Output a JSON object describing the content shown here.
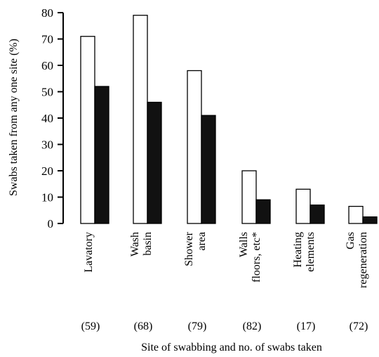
{
  "chart_data": {
    "type": "bar",
    "categories": [
      [
        "Lavatory"
      ],
      [
        "Wash",
        "basin"
      ],
      [
        "Shower",
        "area"
      ],
      [
        "Walls",
        "floors, etc*"
      ],
      [
        "Heating",
        "elements"
      ],
      [
        "Gas",
        "regeneration"
      ]
    ],
    "counts": [
      "(59)",
      "(68)",
      "(79)",
      "(82)",
      "(17)",
      "(72)"
    ],
    "series": [
      {
        "fill": "#ffffff",
        "values": [
          71,
          79,
          58,
          20,
          13,
          6.5
        ]
      },
      {
        "fill": "#111111",
        "values": [
          52,
          46,
          41,
          9,
          7,
          2.5
        ]
      }
    ],
    "ylabel": "Swabs taken from any one site (%)",
    "xlabel": "Site of swabbing and no. of swabs taken",
    "ylim": [
      0,
      80
    ],
    "yticks": [
      0,
      10,
      20,
      30,
      40,
      50,
      60,
      70,
      80
    ],
    "grid": false
  }
}
